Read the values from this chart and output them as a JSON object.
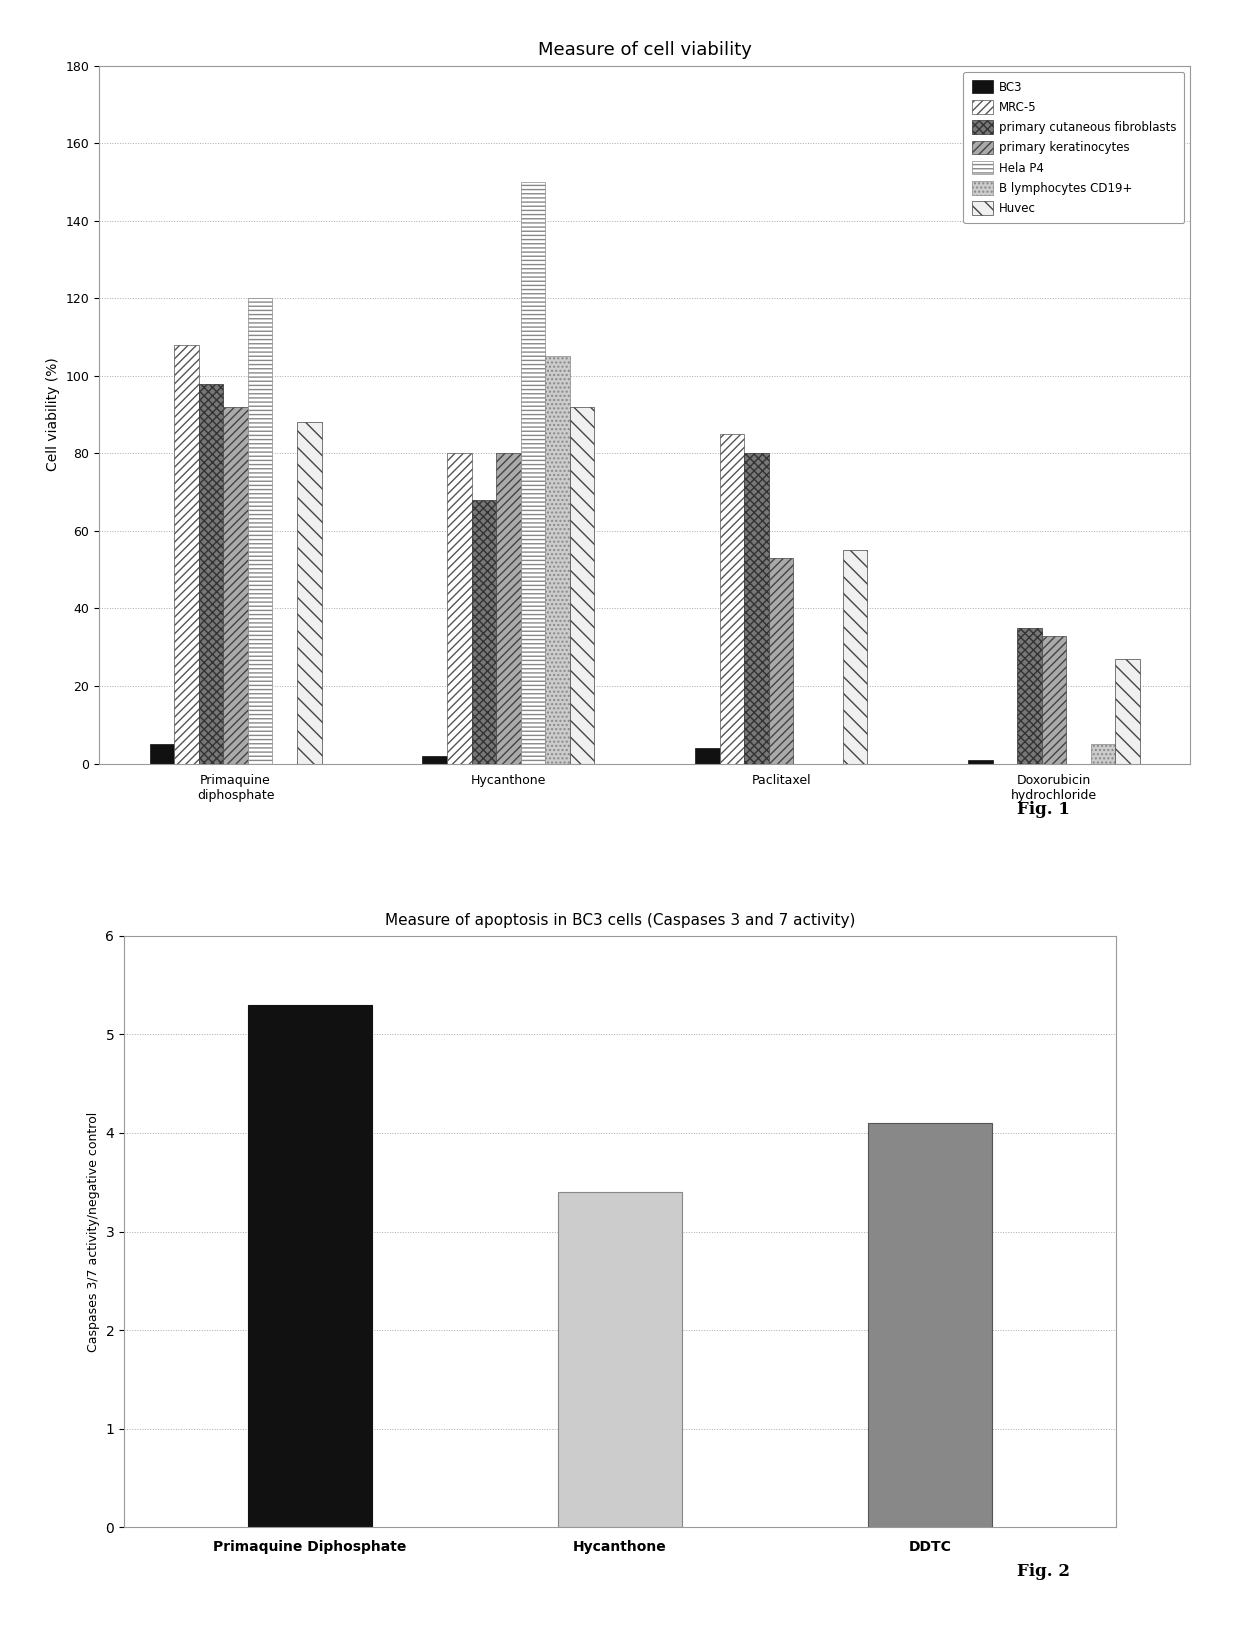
{
  "fig1": {
    "title": "Measure of cell viability",
    "ylabel": "Cell viability (%)",
    "ylim": [
      0,
      180
    ],
    "yticks": [
      0,
      20,
      40,
      60,
      80,
      100,
      120,
      140,
      160,
      180
    ],
    "groups": [
      "Primaquine\ndiphosphate",
      "Hycanthone",
      "Paclitaxel",
      "Doxorubicin\nhydrochloride"
    ],
    "series": [
      {
        "label": "BC3",
        "values": [
          5,
          2,
          4,
          1
        ],
        "hatch": "",
        "color": "#111111",
        "edgecolor": "#111111"
      },
      {
        "label": "MRC-5",
        "values": [
          108,
          80,
          85,
          0
        ],
        "hatch": "////",
        "color": "#ffffff",
        "edgecolor": "#555555"
      },
      {
        "label": "primary cutaneous fibroblasts",
        "values": [
          98,
          68,
          80,
          35
        ],
        "hatch": "xxxx",
        "color": "#777777",
        "edgecolor": "#333333"
      },
      {
        "label": "primary keratinocytes",
        "values": [
          92,
          80,
          53,
          33
        ],
        "hatch": "////",
        "color": "#aaaaaa",
        "edgecolor": "#444444"
      },
      {
        "label": "Hela P4",
        "values": [
          120,
          150,
          0,
          0
        ],
        "hatch": "----",
        "color": "#ffffff",
        "edgecolor": "#888888"
      },
      {
        "label": "B lymphocytes CD19+",
        "values": [
          0,
          105,
          0,
          5
        ],
        "hatch": "....",
        "color": "#cccccc",
        "edgecolor": "#888888"
      },
      {
        "label": "Huvec",
        "values": [
          88,
          92,
          55,
          27
        ],
        "hatch": "\\\\",
        "color": "#f0f0f0",
        "edgecolor": "#444444"
      }
    ],
    "bar_width": 0.09,
    "legend_fontsize": 8.5,
    "title_fontsize": 13,
    "tick_fontsize": 9,
    "ylabel_fontsize": 10
  },
  "fig2": {
    "title": "Measure of apoptosis in BC3 cells (Caspases 3 and 7 activity)",
    "ylabel": "Caspases 3/7 activity/negative control",
    "ylim": [
      0,
      6
    ],
    "yticks": [
      0,
      1,
      2,
      3,
      4,
      5,
      6
    ],
    "groups": [
      "Primaquine Diphosphate",
      "Hycanthone",
      "DDTC"
    ],
    "values": [
      5.3,
      3.4,
      4.1
    ],
    "colors": [
      "#111111",
      "#cccccc",
      "#888888"
    ],
    "edgecolors": [
      "#111111",
      "#888888",
      "#555555"
    ],
    "bar_width": 0.4,
    "title_fontsize": 11,
    "tick_fontsize": 10,
    "ylabel_fontsize": 9
  },
  "fig1_label": "Fig. 1",
  "fig2_label": "Fig. 2",
  "background_color": "#ffffff",
  "border_color": "#999999",
  "grid_color": "#aaaaaa",
  "grid_style": ":"
}
